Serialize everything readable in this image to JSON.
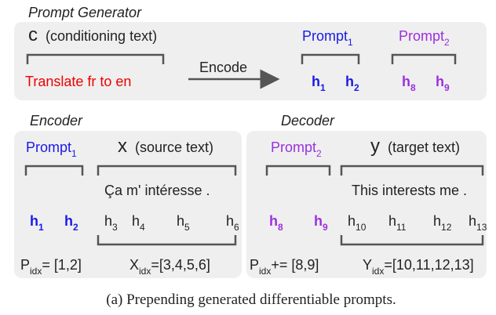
{
  "prompt_generator": {
    "title": "Prompt Generator",
    "conditioning_symbol": "c",
    "conditioning_label": "(conditioning text)",
    "conditioning_text": "Translate fr to en",
    "arrow_label": "Encode",
    "prompts": [
      {
        "label": "Prompt",
        "index": "1",
        "tokens": [
          {
            "symbol": "h",
            "index": "1"
          },
          {
            "symbol": "h",
            "index": "2"
          }
        ]
      },
      {
        "label": "Prompt",
        "index": "2",
        "tokens": [
          {
            "symbol": "h",
            "index": "8"
          },
          {
            "symbol": "h",
            "index": "9"
          }
        ]
      }
    ]
  },
  "encoder": {
    "title": "Encoder",
    "prompt": {
      "label": "Prompt",
      "index": "1"
    },
    "text_symbol": "x",
    "text_label": "(source text)",
    "text": "Ça m' intéresse .",
    "prompt_tokens": [
      {
        "symbol": "h",
        "index": "1"
      },
      {
        "symbol": "h",
        "index": "2"
      }
    ],
    "text_tokens": [
      {
        "symbol": "h",
        "index": "3"
      },
      {
        "symbol": "h",
        "index": "4"
      },
      {
        "symbol": "h",
        "index": "5"
      },
      {
        "symbol": "h",
        "index": "6"
      }
    ],
    "prompt_index": {
      "symbol": "P",
      "subscript": "idx",
      "value": "= [1,2]"
    },
    "text_index": {
      "symbol": "X",
      "subscript": "idx",
      "value": "=[3,4,5,6]"
    }
  },
  "decoder": {
    "title": "Decoder",
    "prompt": {
      "label": "Prompt",
      "index": "2"
    },
    "text_symbol": "y",
    "text_label": "(target text)",
    "text": "This interests me .",
    "prompt_tokens": [
      {
        "symbol": "h",
        "index": "8"
      },
      {
        "symbol": "h",
        "index": "9"
      }
    ],
    "text_tokens": [
      {
        "symbol": "h",
        "index": "10"
      },
      {
        "symbol": "h",
        "index": "11"
      },
      {
        "symbol": "h",
        "index": "12"
      },
      {
        "symbol": "h",
        "index": "13"
      }
    ],
    "prompt_index": {
      "symbol": "P",
      "subscript": "idx",
      "value": "+= [8,9]"
    },
    "text_index": {
      "symbol": "Y",
      "subscript": "idx",
      "value": "=[10,11,12,13]"
    }
  },
  "caption": "(a) Prepending generated differentiable prompts."
}
